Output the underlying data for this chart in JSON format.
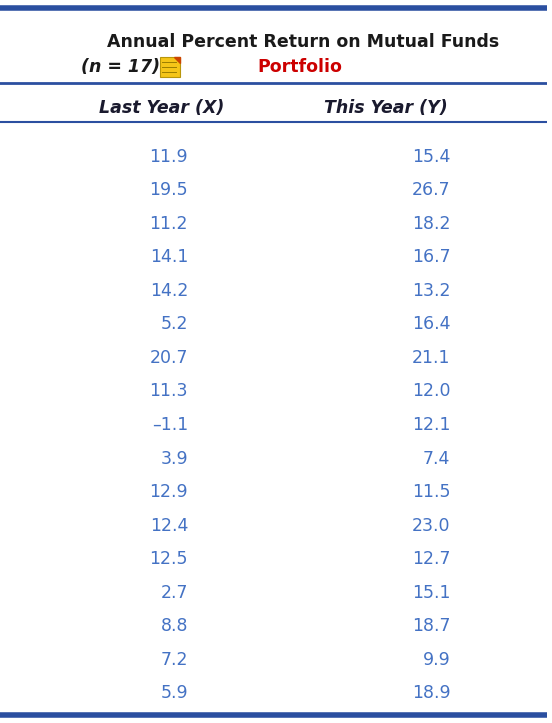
{
  "title_line1": "Annual Percent Return on Mutual Funds",
  "title_line2": "(n = 17)",
  "portfolio_text": "Portfolio",
  "col1_header": "Last Year (X)",
  "col2_header": "This Year (Y)",
  "x_display": [
    "11.9",
    "19.5",
    "11.2",
    "14.1",
    "14.2",
    "5.2",
    "20.7",
    "11.3",
    "–1.1",
    "3.9",
    "12.9",
    "12.4",
    "12.5",
    "2.7",
    "8.8",
    "7.2",
    "5.9"
  ],
  "y_display": [
    "15.4",
    "26.7",
    "18.2",
    "16.7",
    "13.2",
    "16.4",
    "21.1",
    "12.0",
    "12.1",
    "7.4",
    "11.5",
    "23.0",
    "12.7",
    "15.1",
    "18.7",
    "9.9",
    "18.9"
  ],
  "text_color": "#4472C4",
  "title_color": "#1A1A1A",
  "portfolio_color": "#CC0000",
  "border_color": "#2B4FA0",
  "header_text_color": "#1A1A2E",
  "bg_color": "#FFFFFF"
}
